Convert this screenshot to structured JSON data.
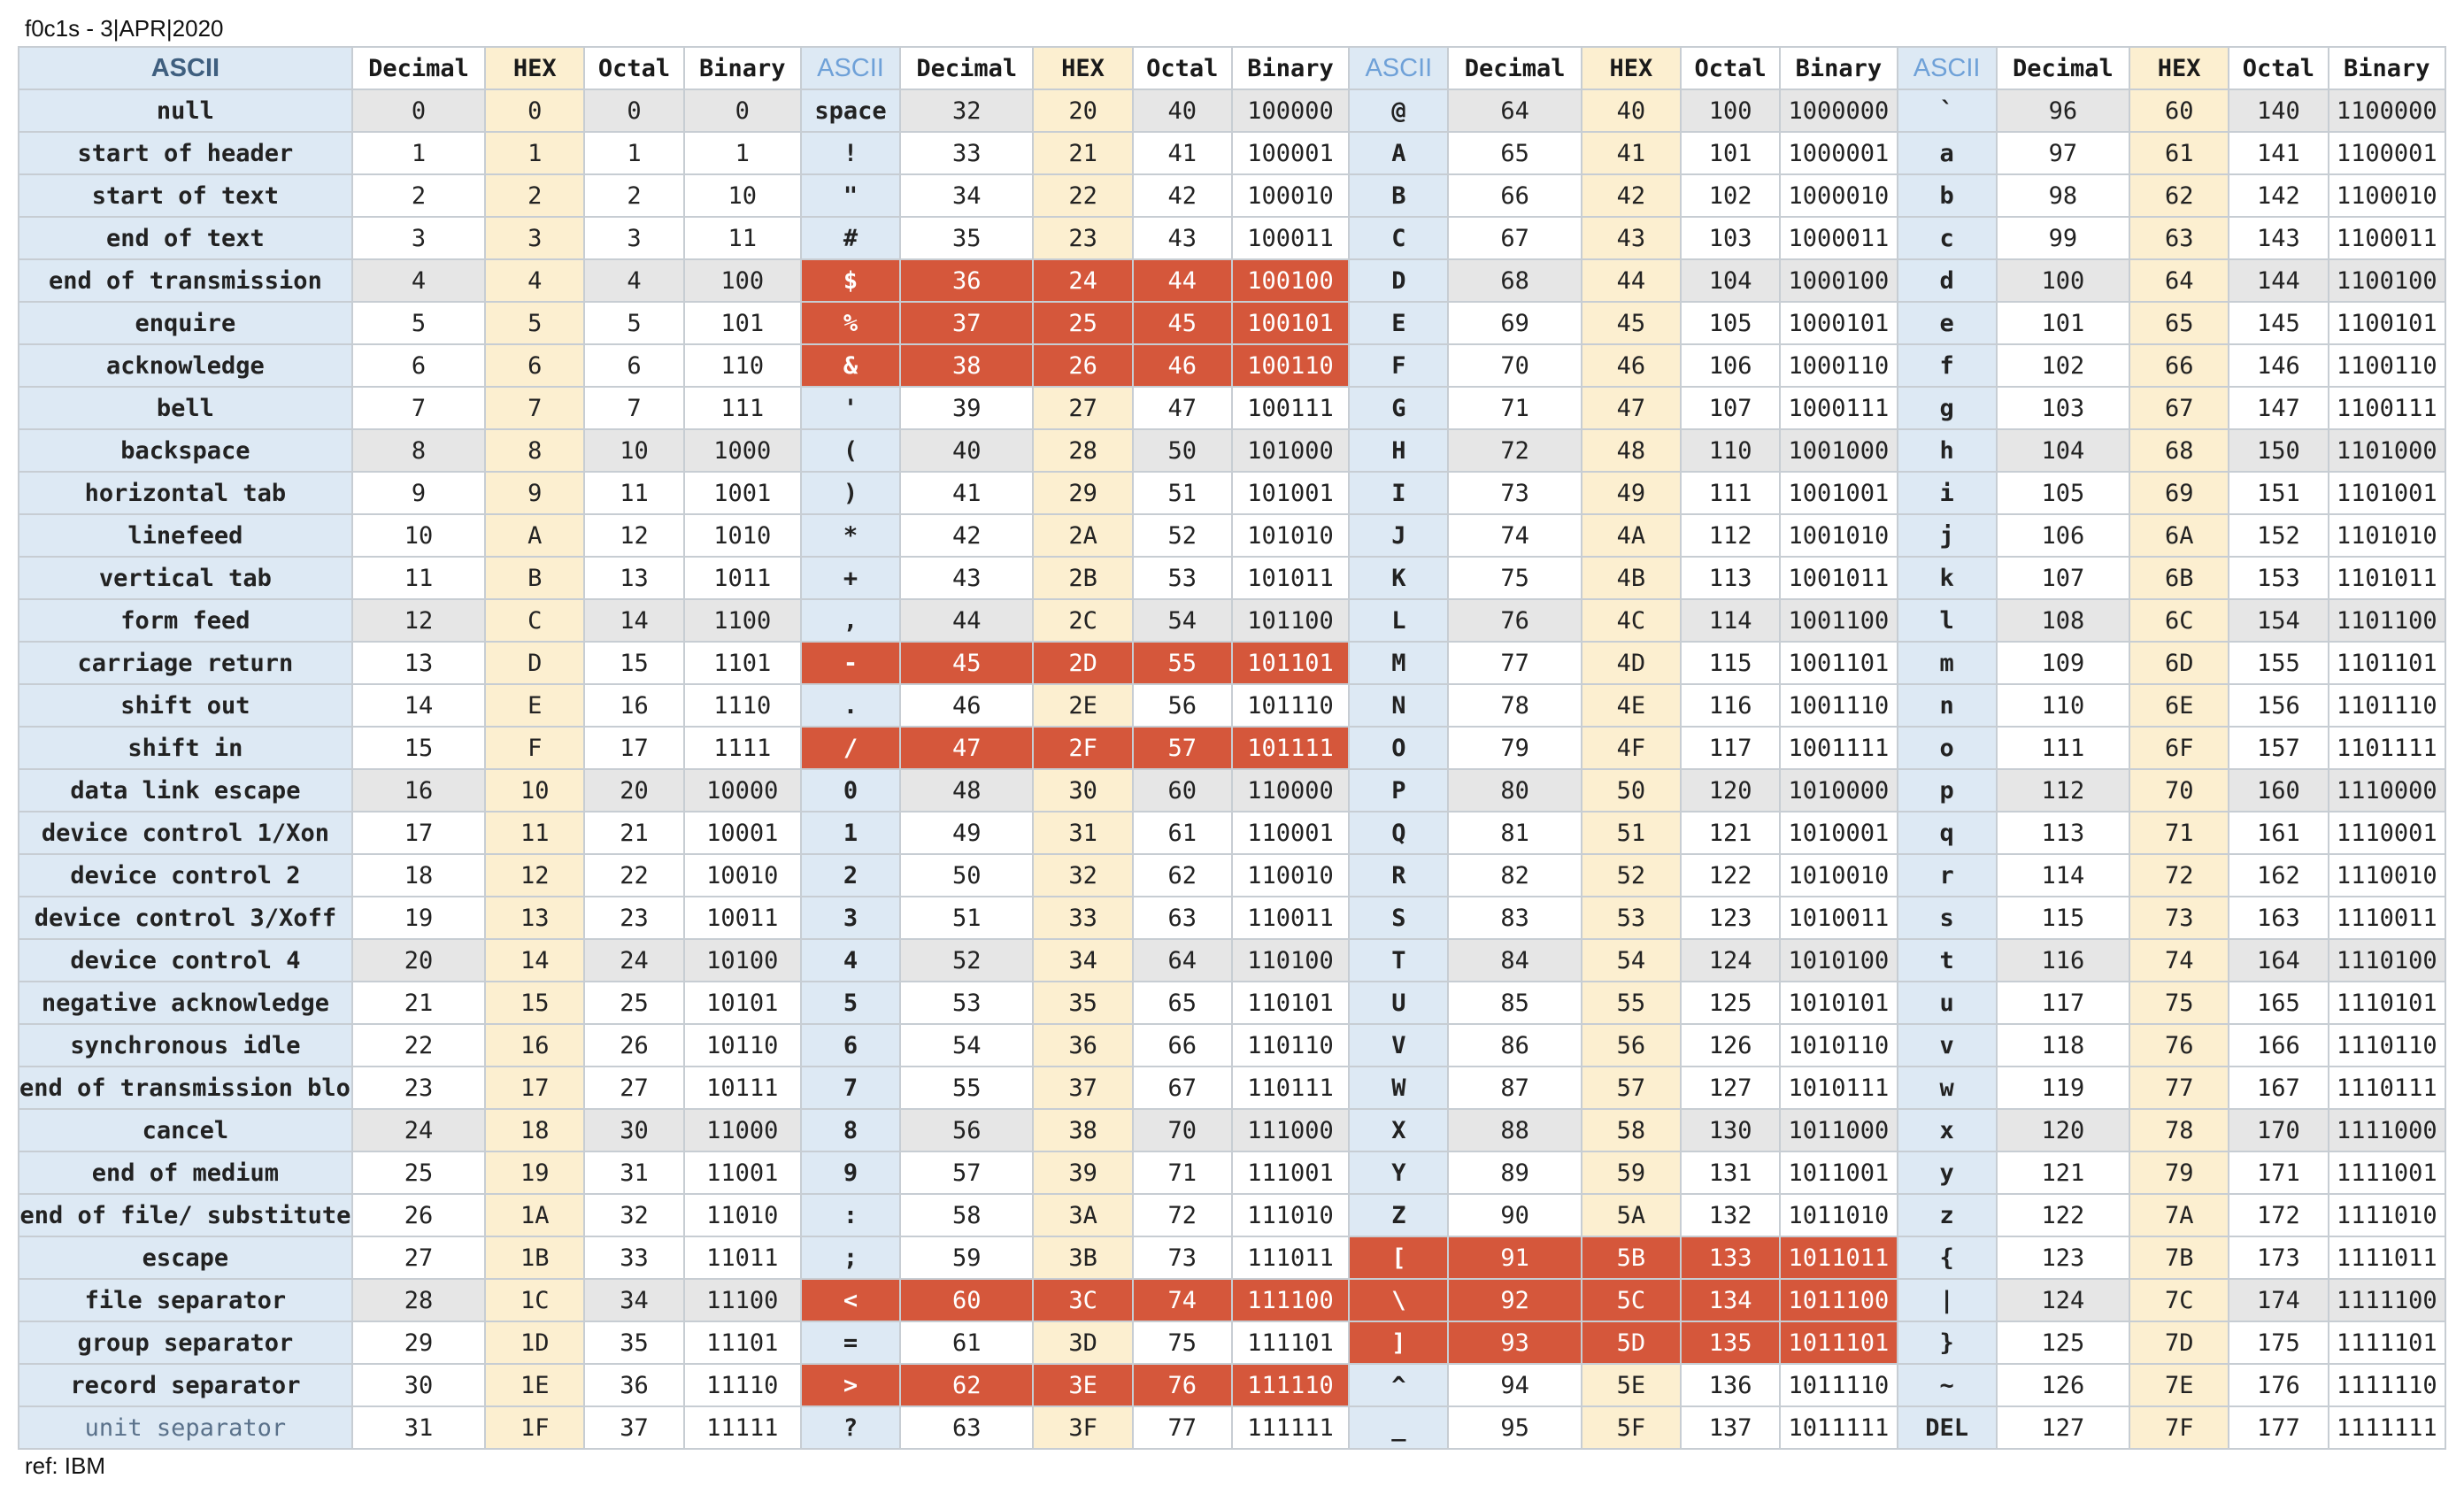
{
  "caption": "f0c1s - 3|APR|2020",
  "footer": "ref: IBM",
  "headers": [
    "ASCII",
    "Decimal",
    "HEX",
    "Octal",
    "Binary",
    "ASCII",
    "Decimal",
    "HEX",
    "Octal",
    "Binary",
    "ASCII",
    "Decimal",
    "HEX",
    "Octal",
    "Binary",
    "ASCII",
    "Decimal",
    "HEX",
    "Octal",
    "Binary"
  ],
  "colors": {
    "name_bg": "#dde9f4",
    "hex_bg": "#fcefd0",
    "shade_bg": "#e6e6e6",
    "highlight_bg": "#d5573b",
    "ascii_glyph": "#6fa1d8",
    "name_text": "#3d5670"
  },
  "rows": [
    [
      "null",
      "0",
      "0",
      "0",
      "0",
      "space",
      "32",
      "20",
      "40",
      "100000",
      "@",
      "64",
      "40",
      "100",
      "1000000",
      "`",
      "96",
      "60",
      "140",
      "1100000"
    ],
    [
      "start of header",
      "1",
      "1",
      "1",
      "1",
      "!",
      "33",
      "21",
      "41",
      "100001",
      "A",
      "65",
      "41",
      "101",
      "1000001",
      "a",
      "97",
      "61",
      "141",
      "1100001"
    ],
    [
      "start of text",
      "2",
      "2",
      "2",
      "10",
      "\"",
      "34",
      "22",
      "42",
      "100010",
      "B",
      "66",
      "42",
      "102",
      "1000010",
      "b",
      "98",
      "62",
      "142",
      "1100010"
    ],
    [
      "end of text",
      "3",
      "3",
      "3",
      "11",
      "#",
      "35",
      "23",
      "43",
      "100011",
      "C",
      "67",
      "43",
      "103",
      "1000011",
      "c",
      "99",
      "63",
      "143",
      "1100011"
    ],
    [
      "end of transmission",
      "4",
      "4",
      "4",
      "100",
      "$",
      "36",
      "24",
      "44",
      "100100",
      "D",
      "68",
      "44",
      "104",
      "1000100",
      "d",
      "100",
      "64",
      "144",
      "1100100"
    ],
    [
      "enquire",
      "5",
      "5",
      "5",
      "101",
      "%",
      "37",
      "25",
      "45",
      "100101",
      "E",
      "69",
      "45",
      "105",
      "1000101",
      "e",
      "101",
      "65",
      "145",
      "1100101"
    ],
    [
      "acknowledge",
      "6",
      "6",
      "6",
      "110",
      "&",
      "38",
      "26",
      "46",
      "100110",
      "F",
      "70",
      "46",
      "106",
      "1000110",
      "f",
      "102",
      "66",
      "146",
      "1100110"
    ],
    [
      "bell",
      "7",
      "7",
      "7",
      "111",
      "'",
      "39",
      "27",
      "47",
      "100111",
      "G",
      "71",
      "47",
      "107",
      "1000111",
      "g",
      "103",
      "67",
      "147",
      "1100111"
    ],
    [
      "backspace",
      "8",
      "8",
      "10",
      "1000",
      "(",
      "40",
      "28",
      "50",
      "101000",
      "H",
      "72",
      "48",
      "110",
      "1001000",
      "h",
      "104",
      "68",
      "150",
      "1101000"
    ],
    [
      "horizontal tab",
      "9",
      "9",
      "11",
      "1001",
      ")",
      "41",
      "29",
      "51",
      "101001",
      "I",
      "73",
      "49",
      "111",
      "1001001",
      "i",
      "105",
      "69",
      "151",
      "1101001"
    ],
    [
      "linefeed",
      "10",
      "A",
      "12",
      "1010",
      "*",
      "42",
      "2A",
      "52",
      "101010",
      "J",
      "74",
      "4A",
      "112",
      "1001010",
      "j",
      "106",
      "6A",
      "152",
      "1101010"
    ],
    [
      "vertical tab",
      "11",
      "B",
      "13",
      "1011",
      "+",
      "43",
      "2B",
      "53",
      "101011",
      "K",
      "75",
      "4B",
      "113",
      "1001011",
      "k",
      "107",
      "6B",
      "153",
      "1101011"
    ],
    [
      "form feed",
      "12",
      "C",
      "14",
      "1100",
      ",",
      "44",
      "2C",
      "54",
      "101100",
      "L",
      "76",
      "4C",
      "114",
      "1001100",
      "l",
      "108",
      "6C",
      "154",
      "1101100"
    ],
    [
      "carriage return",
      "13",
      "D",
      "15",
      "1101",
      "-",
      "45",
      "2D",
      "55",
      "101101",
      "M",
      "77",
      "4D",
      "115",
      "1001101",
      "m",
      "109",
      "6D",
      "155",
      "1101101"
    ],
    [
      "shift out",
      "14",
      "E",
      "16",
      "1110",
      ".",
      "46",
      "2E",
      "56",
      "101110",
      "N",
      "78",
      "4E",
      "116",
      "1001110",
      "n",
      "110",
      "6E",
      "156",
      "1101110"
    ],
    [
      "shift in",
      "15",
      "F",
      "17",
      "1111",
      "/",
      "47",
      "2F",
      "57",
      "101111",
      "O",
      "79",
      "4F",
      "117",
      "1001111",
      "o",
      "111",
      "6F",
      "157",
      "1101111"
    ],
    [
      "data link escape",
      "16",
      "10",
      "20",
      "10000",
      "0",
      "48",
      "30",
      "60",
      "110000",
      "P",
      "80",
      "50",
      "120",
      "1010000",
      "p",
      "112",
      "70",
      "160",
      "1110000"
    ],
    [
      "device control 1/Xon",
      "17",
      "11",
      "21",
      "10001",
      "1",
      "49",
      "31",
      "61",
      "110001",
      "Q",
      "81",
      "51",
      "121",
      "1010001",
      "q",
      "113",
      "71",
      "161",
      "1110001"
    ],
    [
      "device control 2",
      "18",
      "12",
      "22",
      "10010",
      "2",
      "50",
      "32",
      "62",
      "110010",
      "R",
      "82",
      "52",
      "122",
      "1010010",
      "r",
      "114",
      "72",
      "162",
      "1110010"
    ],
    [
      "device control 3/Xoff",
      "19",
      "13",
      "23",
      "10011",
      "3",
      "51",
      "33",
      "63",
      "110011",
      "S",
      "83",
      "53",
      "123",
      "1010011",
      "s",
      "115",
      "73",
      "163",
      "1110011"
    ],
    [
      "device control 4",
      "20",
      "14",
      "24",
      "10100",
      "4",
      "52",
      "34",
      "64",
      "110100",
      "T",
      "84",
      "54",
      "124",
      "1010100",
      "t",
      "116",
      "74",
      "164",
      "1110100"
    ],
    [
      "negative acknowledge",
      "21",
      "15",
      "25",
      "10101",
      "5",
      "53",
      "35",
      "65",
      "110101",
      "U",
      "85",
      "55",
      "125",
      "1010101",
      "u",
      "117",
      "75",
      "165",
      "1110101"
    ],
    [
      "synchronous idle",
      "22",
      "16",
      "26",
      "10110",
      "6",
      "54",
      "36",
      "66",
      "110110",
      "V",
      "86",
      "56",
      "126",
      "1010110",
      "v",
      "118",
      "76",
      "166",
      "1110110"
    ],
    [
      "end of transmission block",
      "23",
      "17",
      "27",
      "10111",
      "7",
      "55",
      "37",
      "67",
      "110111",
      "W",
      "87",
      "57",
      "127",
      "1010111",
      "w",
      "119",
      "77",
      "167",
      "1110111"
    ],
    [
      "cancel",
      "24",
      "18",
      "30",
      "11000",
      "8",
      "56",
      "38",
      "70",
      "111000",
      "X",
      "88",
      "58",
      "130",
      "1011000",
      "x",
      "120",
      "78",
      "170",
      "1111000"
    ],
    [
      "end of medium",
      "25",
      "19",
      "31",
      "11001",
      "9",
      "57",
      "39",
      "71",
      "111001",
      "Y",
      "89",
      "59",
      "131",
      "1011001",
      "y",
      "121",
      "79",
      "171",
      "1111001"
    ],
    [
      "end of file/ substitute",
      "26",
      "1A",
      "32",
      "11010",
      ":",
      "58",
      "3A",
      "72",
      "111010",
      "Z",
      "90",
      "5A",
      "132",
      "1011010",
      "z",
      "122",
      "7A",
      "172",
      "1111010"
    ],
    [
      "escape",
      "27",
      "1B",
      "33",
      "11011",
      ";",
      "59",
      "3B",
      "73",
      "111011",
      "[",
      "91",
      "5B",
      "133",
      "1011011",
      "{",
      "123",
      "7B",
      "173",
      "1111011"
    ],
    [
      "file separator",
      "28",
      "1C",
      "34",
      "11100",
      "<",
      "60",
      "3C",
      "74",
      "111100",
      "\\",
      "92",
      "5C",
      "134",
      "1011100",
      "|",
      "124",
      "7C",
      "174",
      "1111100"
    ],
    [
      "group separator",
      "29",
      "1D",
      "35",
      "11101",
      "=",
      "61",
      "3D",
      "75",
      "111101",
      "]",
      "93",
      "5D",
      "135",
      "1011101",
      "}",
      "125",
      "7D",
      "175",
      "1111101"
    ],
    [
      "record separator",
      "30",
      "1E",
      "36",
      "11110",
      ">",
      "62",
      "3E",
      "76",
      "111110",
      "^",
      "94",
      "5E",
      "136",
      "1011110",
      "~",
      "126",
      "7E",
      "176",
      "1111110"
    ],
    [
      "unit separator",
      "31",
      "1F",
      "37",
      "11111",
      "?",
      "63",
      "3F",
      "77",
      "111111",
      "_",
      "95",
      "5F",
      "137",
      "1011111",
      "DEL",
      "127",
      "7F",
      "177",
      "1111111"
    ]
  ],
  "shaded_rows": [
    0,
    4,
    8,
    12,
    16,
    20,
    24,
    28
  ],
  "highlights": [
    {
      "row": 4,
      "group": 1
    },
    {
      "row": 5,
      "group": 1
    },
    {
      "row": 6,
      "group": 1
    },
    {
      "row": 13,
      "group": 1
    },
    {
      "row": 15,
      "group": 1
    },
    {
      "row": 28,
      "group": 1
    },
    {
      "row": 30,
      "group": 1
    },
    {
      "row": 27,
      "group": 2
    },
    {
      "row": 28,
      "group": 2
    },
    {
      "row": 29,
      "group": 2
    }
  ]
}
